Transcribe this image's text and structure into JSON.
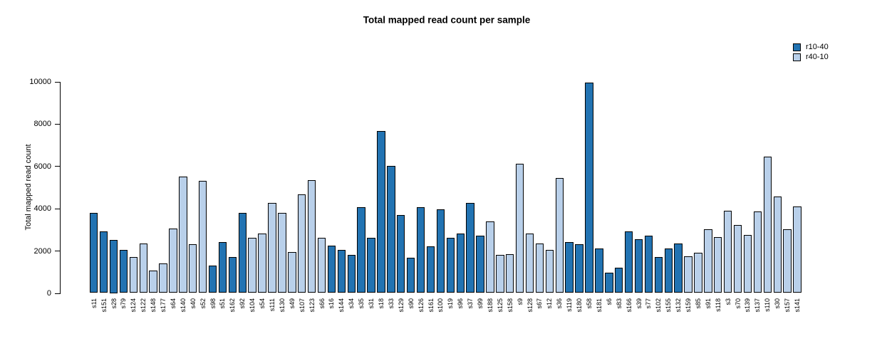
{
  "chart_data": {
    "type": "bar",
    "title": "Total mapped read count per sample",
    "xlabel": "",
    "ylabel": "Total mapped read count",
    "ylim": [
      0,
      10000
    ],
    "yticks": [
      0,
      2000,
      4000,
      6000,
      8000,
      10000
    ],
    "grid": false,
    "legend": {
      "position": "top-right",
      "entries": [
        {
          "label": "r10-40",
          "color": "#2273b2"
        },
        {
          "label": "r40-10",
          "color": "#b9d0ea"
        }
      ]
    },
    "samples": [
      {
        "label": "s11",
        "value": 3800,
        "group": "r10-40"
      },
      {
        "label": "s151",
        "value": 2900,
        "group": "r10-40"
      },
      {
        "label": "s28",
        "value": 2500,
        "group": "r10-40"
      },
      {
        "label": "s79",
        "value": 2050,
        "group": "r10-40"
      },
      {
        "label": "s124",
        "value": 1700,
        "group": "r40-10"
      },
      {
        "label": "s122",
        "value": 2350,
        "group": "r40-10"
      },
      {
        "label": "s148",
        "value": 1050,
        "group": "r40-10"
      },
      {
        "label": "s177",
        "value": 1400,
        "group": "r40-10"
      },
      {
        "label": "s64",
        "value": 3050,
        "group": "r40-10"
      },
      {
        "label": "s140",
        "value": 5500,
        "group": "r40-10"
      },
      {
        "label": "s40",
        "value": 2300,
        "group": "r40-10"
      },
      {
        "label": "s52",
        "value": 5300,
        "group": "r40-10"
      },
      {
        "label": "s98",
        "value": 1300,
        "group": "r10-40"
      },
      {
        "label": "s51",
        "value": 2400,
        "group": "r10-40"
      },
      {
        "label": "s162",
        "value": 1700,
        "group": "r10-40"
      },
      {
        "label": "s92",
        "value": 3800,
        "group": "r10-40"
      },
      {
        "label": "s104",
        "value": 2600,
        "group": "r40-10"
      },
      {
        "label": "s54",
        "value": 2800,
        "group": "r40-10"
      },
      {
        "label": "s111",
        "value": 4250,
        "group": "r40-10"
      },
      {
        "label": "s130",
        "value": 3800,
        "group": "r40-10"
      },
      {
        "label": "s49",
        "value": 1950,
        "group": "r40-10"
      },
      {
        "label": "s107",
        "value": 4650,
        "group": "r40-10"
      },
      {
        "label": "s123",
        "value": 5350,
        "group": "r40-10"
      },
      {
        "label": "s66",
        "value": 2600,
        "group": "r40-10"
      },
      {
        "label": "s16",
        "value": 2250,
        "group": "r10-40"
      },
      {
        "label": "s144",
        "value": 2050,
        "group": "r10-40"
      },
      {
        "label": "s34",
        "value": 1800,
        "group": "r10-40"
      },
      {
        "label": "s35",
        "value": 4050,
        "group": "r10-40"
      },
      {
        "label": "s31",
        "value": 2600,
        "group": "r10-40"
      },
      {
        "label": "s18",
        "value": 7650,
        "group": "r10-40"
      },
      {
        "label": "s33",
        "value": 6000,
        "group": "r10-40"
      },
      {
        "label": "s129",
        "value": 3700,
        "group": "r10-40"
      },
      {
        "label": "s90",
        "value": 1650,
        "group": "r10-40"
      },
      {
        "label": "s126",
        "value": 4050,
        "group": "r10-40"
      },
      {
        "label": "s161",
        "value": 2200,
        "group": "r10-40"
      },
      {
        "label": "s100",
        "value": 3950,
        "group": "r10-40"
      },
      {
        "label": "s19",
        "value": 2600,
        "group": "r10-40"
      },
      {
        "label": "s96",
        "value": 2800,
        "group": "r10-40"
      },
      {
        "label": "s37",
        "value": 4250,
        "group": "r10-40"
      },
      {
        "label": "s99",
        "value": 2700,
        "group": "r10-40"
      },
      {
        "label": "s188",
        "value": 3400,
        "group": "r40-10"
      },
      {
        "label": "s125",
        "value": 1800,
        "group": "r40-10"
      },
      {
        "label": "s158",
        "value": 1850,
        "group": "r40-10"
      },
      {
        "label": "s9",
        "value": 6100,
        "group": "r40-10"
      },
      {
        "label": "s128",
        "value": 2800,
        "group": "r40-10"
      },
      {
        "label": "s67",
        "value": 2350,
        "group": "r40-10"
      },
      {
        "label": "s12",
        "value": 2050,
        "group": "r40-10"
      },
      {
        "label": "s36",
        "value": 5450,
        "group": "r40-10"
      },
      {
        "label": "s119",
        "value": 2400,
        "group": "r10-40"
      },
      {
        "label": "s180",
        "value": 2300,
        "group": "r10-40"
      },
      {
        "label": "s58",
        "value": 9950,
        "group": "r10-40"
      },
      {
        "label": "s181",
        "value": 2100,
        "group": "r10-40"
      },
      {
        "label": "s6",
        "value": 950,
        "group": "r10-40"
      },
      {
        "label": "s83",
        "value": 1200,
        "group": "r10-40"
      },
      {
        "label": "s166",
        "value": 2900,
        "group": "r10-40"
      },
      {
        "label": "s39",
        "value": 2550,
        "group": "r10-40"
      },
      {
        "label": "s77",
        "value": 2700,
        "group": "r10-40"
      },
      {
        "label": "s102",
        "value": 1700,
        "group": "r10-40"
      },
      {
        "label": "s155",
        "value": 2100,
        "group": "r10-40"
      },
      {
        "label": "s132",
        "value": 2350,
        "group": "r10-40"
      },
      {
        "label": "s159",
        "value": 1750,
        "group": "r40-10"
      },
      {
        "label": "s85",
        "value": 1900,
        "group": "r40-10"
      },
      {
        "label": "s91",
        "value": 3000,
        "group": "r40-10"
      },
      {
        "label": "s118",
        "value": 2650,
        "group": "r40-10"
      },
      {
        "label": "s3",
        "value": 3900,
        "group": "r40-10"
      },
      {
        "label": "s70",
        "value": 3200,
        "group": "r40-10"
      },
      {
        "label": "s139",
        "value": 2750,
        "group": "r40-10"
      },
      {
        "label": "s137",
        "value": 3850,
        "group": "r40-10"
      },
      {
        "label": "s110",
        "value": 6450,
        "group": "r40-10"
      },
      {
        "label": "s30",
        "value": 4550,
        "group": "r40-10"
      },
      {
        "label": "s157",
        "value": 3000,
        "group": "r40-10"
      },
      {
        "label": "s141",
        "value": 4100,
        "group": "r40-10"
      }
    ]
  }
}
